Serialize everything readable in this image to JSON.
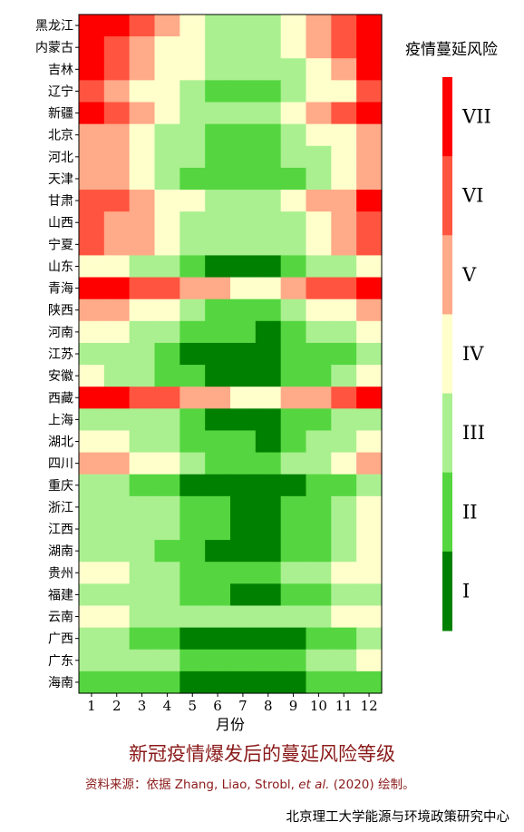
{
  "chart_data": {
    "type": "heatmap",
    "xlabel": "月份",
    "x": [
      "1",
      "2",
      "3",
      "4",
      "5",
      "6",
      "7",
      "8",
      "9",
      "10",
      "11",
      "12"
    ],
    "y": [
      "黑龙江",
      "内蒙古",
      "吉林",
      "辽宁",
      "新疆",
      "北京",
      "河北",
      "天津",
      "甘肃",
      "山西",
      "宁夏",
      "山东",
      "青海",
      "陕西",
      "河南",
      "江苏",
      "安徽",
      "西藏",
      "上海",
      "湖北",
      "四川",
      "重庆",
      "浙江",
      "江西",
      "湖南",
      "贵州",
      "福建",
      "云南",
      "广西",
      "广东",
      "海南"
    ],
    "values": [
      [
        7,
        7,
        6,
        5,
        4,
        3,
        3,
        3,
        4,
        5,
        6,
        7
      ],
      [
        7,
        6,
        5,
        4,
        4,
        3,
        3,
        3,
        4,
        5,
        6,
        7
      ],
      [
        7,
        6,
        5,
        4,
        4,
        3,
        3,
        3,
        3,
        4,
        5,
        7
      ],
      [
        6,
        5,
        4,
        4,
        3,
        2,
        2,
        2,
        3,
        4,
        4,
        6
      ],
      [
        7,
        6,
        5,
        4,
        3,
        3,
        3,
        3,
        4,
        5,
        6,
        7
      ],
      [
        5,
        5,
        4,
        3,
        3,
        2,
        2,
        2,
        3,
        4,
        4,
        5
      ],
      [
        5,
        5,
        4,
        3,
        3,
        2,
        2,
        2,
        3,
        3,
        4,
        5
      ],
      [
        5,
        5,
        4,
        3,
        2,
        2,
        2,
        2,
        2,
        3,
        4,
        5
      ],
      [
        6,
        6,
        5,
        4,
        4,
        3,
        3,
        3,
        4,
        5,
        5,
        7
      ],
      [
        6,
        5,
        5,
        4,
        3,
        3,
        3,
        3,
        3,
        4,
        5,
        6
      ],
      [
        6,
        5,
        5,
        4,
        3,
        3,
        3,
        3,
        3,
        4,
        5,
        6
      ],
      [
        4,
        4,
        3,
        3,
        2,
        1,
        1,
        1,
        2,
        3,
        3,
        4
      ],
      [
        7,
        7,
        6,
        6,
        5,
        5,
        4,
        4,
        5,
        6,
        6,
        7
      ],
      [
        5,
        5,
        4,
        4,
        3,
        2,
        2,
        2,
        3,
        4,
        4,
        5
      ],
      [
        4,
        4,
        3,
        3,
        2,
        2,
        2,
        1,
        2,
        3,
        3,
        4
      ],
      [
        3,
        3,
        3,
        2,
        1,
        1,
        1,
        1,
        2,
        2,
        2,
        3
      ],
      [
        4,
        3,
        3,
        2,
        2,
        1,
        1,
        1,
        2,
        2,
        3,
        4
      ],
      [
        7,
        7,
        6,
        6,
        5,
        5,
        4,
        4,
        5,
        5,
        6,
        7
      ],
      [
        3,
        3,
        3,
        3,
        2,
        1,
        1,
        1,
        2,
        2,
        3,
        3
      ],
      [
        4,
        4,
        3,
        3,
        2,
        2,
        2,
        1,
        2,
        3,
        3,
        4
      ],
      [
        5,
        5,
        4,
        4,
        3,
        2,
        2,
        2,
        3,
        3,
        4,
        5
      ],
      [
        3,
        3,
        2,
        2,
        1,
        1,
        1,
        1,
        1,
        2,
        2,
        3
      ],
      [
        3,
        3,
        3,
        3,
        2,
        2,
        1,
        1,
        2,
        2,
        3,
        4
      ],
      [
        3,
        3,
        3,
        3,
        2,
        2,
        1,
        1,
        2,
        2,
        3,
        4
      ],
      [
        3,
        3,
        3,
        2,
        2,
        1,
        1,
        1,
        2,
        2,
        3,
        4
      ],
      [
        4,
        4,
        3,
        3,
        2,
        2,
        2,
        2,
        3,
        3,
        4,
        4
      ],
      [
        3,
        3,
        3,
        3,
        2,
        2,
        1,
        1,
        2,
        2,
        3,
        3
      ],
      [
        4,
        4,
        3,
        3,
        3,
        3,
        3,
        3,
        3,
        3,
        4,
        4
      ],
      [
        3,
        3,
        2,
        2,
        1,
        1,
        1,
        1,
        1,
        2,
        2,
        3
      ],
      [
        3,
        3,
        3,
        3,
        2,
        2,
        2,
        2,
        2,
        3,
        3,
        4
      ],
      [
        2,
        2,
        2,
        2,
        1,
        1,
        1,
        1,
        1,
        2,
        2,
        2
      ]
    ],
    "legend": {
      "title": "疫情蔓延风险",
      "levels": [
        "I",
        "II",
        "III",
        "IV",
        "V",
        "VI",
        "VII"
      ]
    },
    "colors": [
      "#008000",
      "#55d640",
      "#aaf090",
      "#ffffcc",
      "#ffaa88",
      "#ff5540",
      "#ff0000"
    ]
  },
  "caption": {
    "title": "新冠疫情爆发后的蔓延风险等级",
    "source_prefix": "资料来源：依据 Zhang, Liao, Strobl, ",
    "source_italic": "et al.",
    "source_suffix": " (2020) 绘制。",
    "credit": "北京理工大学能源与环境政策研究中心"
  }
}
